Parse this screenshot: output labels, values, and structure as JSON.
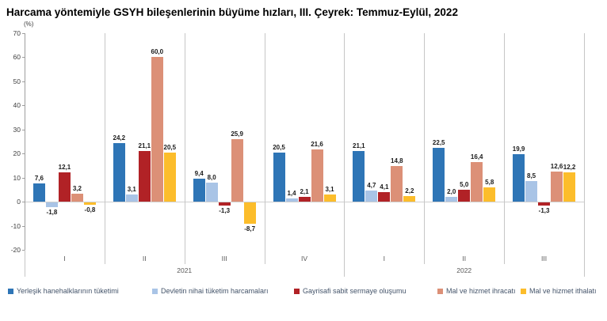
{
  "title": "Harcama yöntemiyle GSYH bileşenlerinin büyüme hızları, III. Çeyrek: Temmuz-Eylül, 2022",
  "chart_data": {
    "type": "bar",
    "title": "Harcama yöntemiyle GSYH bileşenlerinin büyüme hızları, III. Çeyrek: Temmuz-Eylül, 2022",
    "ylabel": "(%)",
    "ylim": [
      -20,
      70
    ],
    "yticks": [
      70,
      60,
      50,
      40,
      30,
      20,
      10,
      0,
      -10,
      -20
    ],
    "grid": false,
    "legend_position": "bottom",
    "decimal_separator": ",",
    "categories": [
      "I",
      "II",
      "III",
      "IV",
      "I",
      "II",
      "III"
    ],
    "year_groups": [
      {
        "label": "2021",
        "start": 0,
        "end": 3
      },
      {
        "label": "2022",
        "start": 4,
        "end": 6
      }
    ],
    "series": [
      {
        "name": "Yerleşik hanehalklarının tüketimi",
        "color": "#2E75B6",
        "values": [
          7.6,
          24.2,
          9.4,
          20.5,
          21.1,
          22.5,
          19.9
        ]
      },
      {
        "name": "Devletin nihai tüketim harcamaları",
        "color": "#A9C4E6",
        "values": [
          -1.8,
          3.1,
          8.0,
          1.4,
          4.7,
          2.0,
          8.5
        ]
      },
      {
        "name": "Gayrisafi sabit sermaye oluşumu",
        "color": "#B12226",
        "values": [
          12.1,
          21.1,
          -1.3,
          2.1,
          4.1,
          5.0,
          -1.3
        ]
      },
      {
        "name": "Mal ve hizmet ihracatı",
        "color": "#DC9077",
        "values": [
          3.2,
          60.0,
          25.9,
          21.6,
          14.8,
          16.4,
          12.6
        ]
      },
      {
        "name": "Mal ve hizmet ithalatı",
        "color": "#FCBD2B",
        "values": [
          -0.8,
          20.5,
          -8.7,
          3.1,
          2.2,
          5.8,
          12.2
        ]
      }
    ]
  }
}
